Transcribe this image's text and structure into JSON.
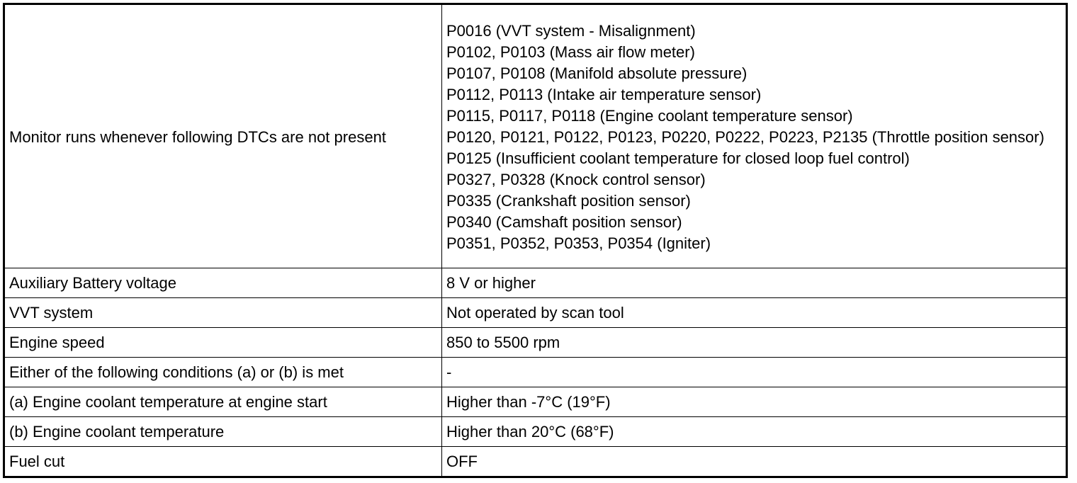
{
  "table": {
    "rows": [
      {
        "label": "Monitor runs whenever following DTCs are not present",
        "values": [
          "P0016 (VVT system - Misalignment)",
          "P0102, P0103 (Mass air flow meter)",
          "P0107, P0108 (Manifold absolute pressure)",
          "P0112, P0113 (Intake air temperature sensor)",
          "P0115, P0117, P0118 (Engine coolant temperature sensor)",
          "P0120, P0121, P0122, P0123, P0220, P0222, P0223, P2135 (Throttle position sensor)",
          "P0125 (Insufficient coolant temperature for closed loop fuel control)",
          "P0327, P0328 (Knock control sensor)",
          "P0335 (Crankshaft position sensor)",
          "P0340 (Camshaft position sensor)",
          "P0351, P0352, P0353, P0354 (Igniter)"
        ]
      },
      {
        "label": "Auxiliary Battery voltage",
        "value": "8 V or higher"
      },
      {
        "label": "VVT system",
        "value": "Not operated by scan tool"
      },
      {
        "label": "Engine speed",
        "value": "850 to 5500 rpm"
      },
      {
        "label": "Either of the following conditions (a) or (b) is met",
        "value": "-"
      },
      {
        "label": "(a) Engine coolant temperature at engine start",
        "value": "Higher than -7°C (19°F)"
      },
      {
        "label": "(b) Engine coolant temperature",
        "value": "Higher than 20°C (68°F)"
      },
      {
        "label": "Fuel cut",
        "value": "OFF"
      }
    ]
  }
}
